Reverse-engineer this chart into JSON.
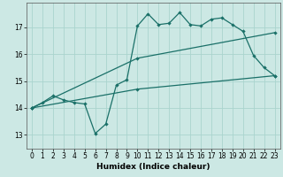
{
  "xlabel": "Humidex (Indice chaleur)",
  "background_color": "#cce8e4",
  "grid_color": "#aad4ce",
  "line_color": "#1a7068",
  "xlim": [
    -0.5,
    23.5
  ],
  "ylim": [
    12.5,
    17.9
  ],
  "x_ticks": [
    0,
    1,
    2,
    3,
    4,
    5,
    6,
    7,
    8,
    9,
    10,
    11,
    12,
    13,
    14,
    15,
    16,
    17,
    18,
    19,
    20,
    21,
    22,
    23
  ],
  "y_ticks": [
    13,
    14,
    15,
    16,
    17
  ],
  "line1_x": [
    0,
    1,
    2,
    3,
    4,
    5,
    6,
    7,
    8,
    9,
    10,
    11,
    12,
    13,
    14,
    15,
    16,
    17,
    18,
    19,
    20,
    21,
    22,
    23
  ],
  "line1_y": [
    14.0,
    14.2,
    14.45,
    14.3,
    14.2,
    14.15,
    13.05,
    13.4,
    14.85,
    15.05,
    17.05,
    17.5,
    17.1,
    17.15,
    17.55,
    17.1,
    17.05,
    17.3,
    17.35,
    17.1,
    16.85,
    15.95,
    15.5,
    15.2
  ],
  "line2_x": [
    0,
    10,
    23
  ],
  "line2_y": [
    14.0,
    15.85,
    16.8
  ],
  "line3_x": [
    0,
    10,
    23
  ],
  "line3_y": [
    14.0,
    14.7,
    15.2
  ],
  "xlabel_fontsize": 6.5,
  "tick_fontsize": 5.5,
  "linewidth": 0.9,
  "markersize": 2.2
}
